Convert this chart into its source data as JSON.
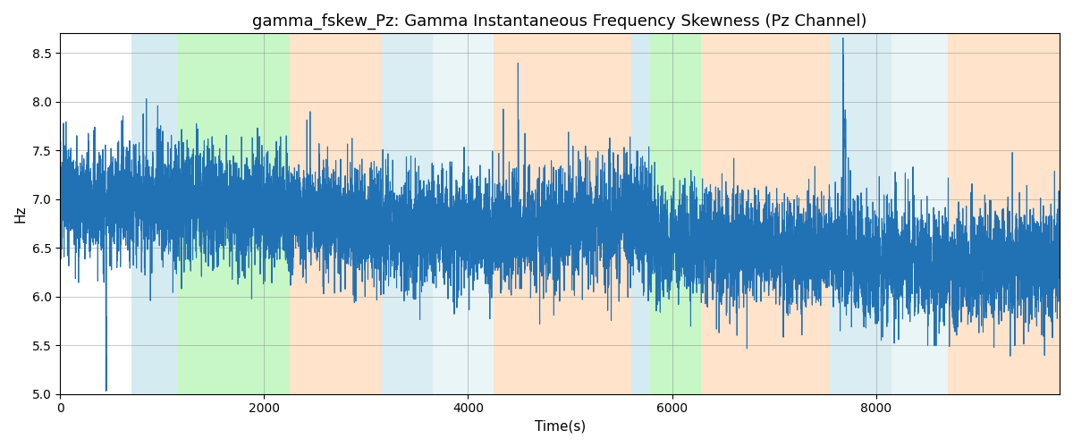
{
  "title": "gamma_fskew_Pz: Gamma Instantaneous Frequency Skewness (Pz Channel)",
  "xlabel": "Time(s)",
  "ylabel": "Hz",
  "ylim": [
    5.0,
    8.7
  ],
  "xlim": [
    0,
    9800
  ],
  "line_color": "#2171b5",
  "line_width": 0.8,
  "bg_color": "#ffffff",
  "shaded_regions": [
    {
      "start": 700,
      "end": 1150,
      "color": "#add8e6",
      "alpha": 0.5
    },
    {
      "start": 1150,
      "end": 2250,
      "color": "#90ee90",
      "alpha": 0.5
    },
    {
      "start": 2250,
      "end": 3150,
      "color": "#ffc896",
      "alpha": 0.5
    },
    {
      "start": 3150,
      "end": 3650,
      "color": "#add8e6",
      "alpha": 0.45
    },
    {
      "start": 3650,
      "end": 4250,
      "color": "#add8e6",
      "alpha": 0.25
    },
    {
      "start": 4250,
      "end": 5600,
      "color": "#ffc896",
      "alpha": 0.5
    },
    {
      "start": 5600,
      "end": 5780,
      "color": "#add8e6",
      "alpha": 0.5
    },
    {
      "start": 5780,
      "end": 6280,
      "color": "#90ee90",
      "alpha": 0.5
    },
    {
      "start": 6280,
      "end": 7550,
      "color": "#ffc896",
      "alpha": 0.5
    },
    {
      "start": 7550,
      "end": 8150,
      "color": "#add8e6",
      "alpha": 0.45
    },
    {
      "start": 8150,
      "end": 8700,
      "color": "#add8e6",
      "alpha": 0.25
    },
    {
      "start": 8700,
      "end": 9800,
      "color": "#ffc896",
      "alpha": 0.5
    }
  ],
  "seed": 99,
  "n_points": 9800,
  "title_fontsize": 13
}
